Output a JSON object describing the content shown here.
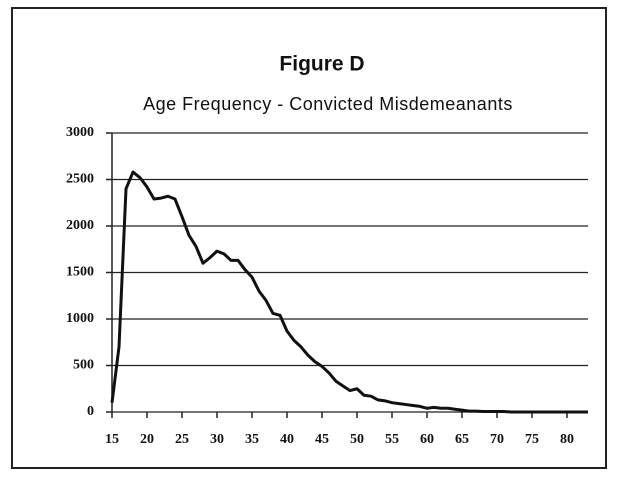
{
  "chart_data": {
    "type": "line",
    "title": "Figure D",
    "subtitle": "Age Frequency - Convicted Misdemeanants",
    "x": [
      15,
      16,
      17,
      18,
      19,
      20,
      21,
      22,
      23,
      24,
      25,
      26,
      27,
      28,
      29,
      30,
      31,
      32,
      33,
      34,
      35,
      36,
      37,
      38,
      39,
      40,
      41,
      42,
      43,
      44,
      45,
      46,
      47,
      48,
      49,
      50,
      51,
      52,
      53,
      54,
      55,
      56,
      57,
      58,
      59,
      60,
      61,
      62,
      63,
      64,
      65,
      66,
      67,
      68,
      69,
      70,
      71,
      72,
      73,
      74,
      75,
      76,
      77,
      78,
      79,
      80,
      81,
      82,
      83
    ],
    "values": [
      100,
      700,
      2400,
      2580,
      2520,
      2420,
      2290,
      2300,
      2320,
      2290,
      2100,
      1900,
      1780,
      1600,
      1660,
      1730,
      1700,
      1630,
      1630,
      1530,
      1450,
      1300,
      1200,
      1060,
      1040,
      870,
      770,
      700,
      610,
      540,
      490,
      420,
      330,
      280,
      230,
      250,
      180,
      170,
      130,
      120,
      100,
      90,
      80,
      70,
      60,
      40,
      50,
      40,
      40,
      30,
      20,
      10,
      10,
      5,
      5,
      5,
      5,
      0,
      0,
      0,
      0,
      0,
      0,
      0,
      0,
      0,
      0,
      0,
      0
    ],
    "color": "#111111",
    "xlim": [
      15,
      83
    ],
    "xticks": [
      15,
      20,
      25,
      30,
      35,
      40,
      45,
      50,
      55,
      60,
      65,
      70,
      75,
      80
    ],
    "ylim": [
      0,
      3000
    ],
    "yticks": [
      0,
      500,
      1000,
      1500,
      2000,
      2500,
      3000
    ],
    "grid": true
  }
}
